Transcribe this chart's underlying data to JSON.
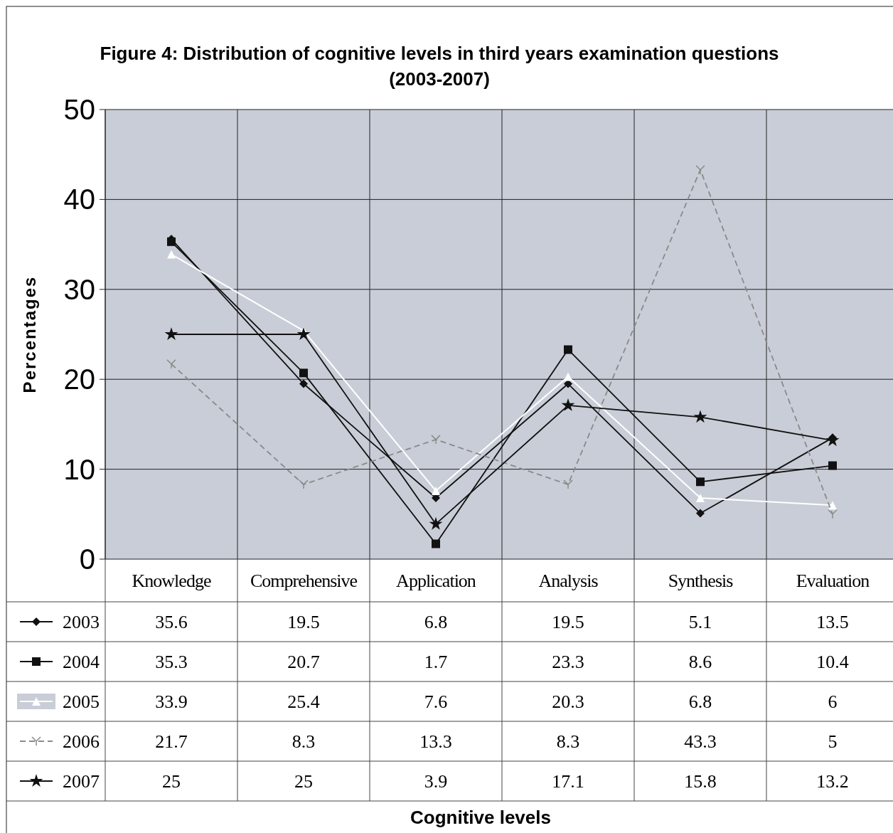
{
  "chart_data": {
    "type": "line",
    "title": "Figure 4: Distribution of cognitive levels in third years examination questions (2003-2007)",
    "annotations": [
      "Cognitive levels"
    ],
    "ylabel": "Percentages",
    "categories": [
      "Knowledge",
      "Comprehensive",
      "Application",
      "Analysis",
      "Synthesis",
      "Evaluation"
    ],
    "ylim": [
      0,
      50
    ],
    "yticks": [
      0,
      10,
      20,
      30,
      40,
      50
    ],
    "grid": true,
    "legend": "bottom",
    "data_labels": true,
    "series": [
      {
        "name": "2003",
        "color": "#111111",
        "marker": "diamond",
        "values": [
          35.6,
          19.5,
          6.8,
          19.5,
          5.1,
          13.5
        ]
      },
      {
        "name": "2004",
        "color": "#111111",
        "marker": "square",
        "values": [
          35.3,
          20.7,
          1.7,
          23.3,
          8.6,
          10.4
        ]
      },
      {
        "name": "2005",
        "color": "#ffffff",
        "marker": "triangle",
        "values": [
          33.9,
          25.4,
          7.6,
          20.3,
          6.8,
          6
        ]
      },
      {
        "name": "2006",
        "color": "#8a8a8a",
        "marker": "cross",
        "line_style": "dashed",
        "values": [
          21.7,
          8.3,
          13.3,
          8.3,
          43.3,
          5
        ]
      },
      {
        "name": "2007",
        "color": "#111111",
        "marker": "star",
        "values": [
          25,
          25,
          3.9,
          17.1,
          15.8,
          13.2
        ]
      }
    ]
  }
}
